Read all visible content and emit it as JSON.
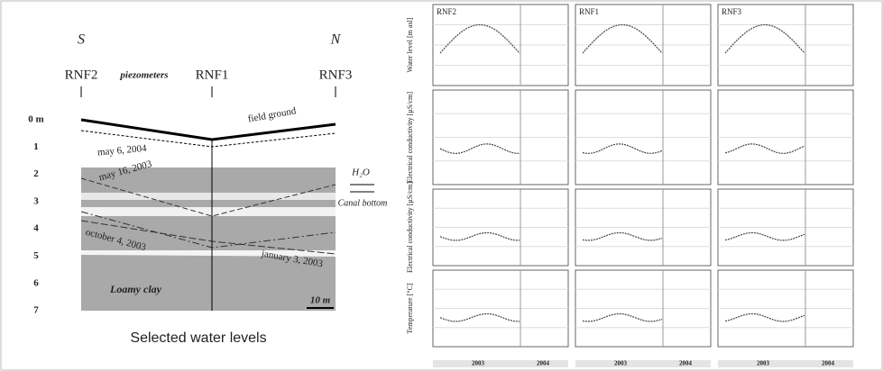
{
  "left": {
    "south": "S",
    "north": "N",
    "piezometers": [
      "RNF2",
      "RNF1",
      "RNF3"
    ],
    "piezometers_label": "piezometers",
    "depths": [
      "0 m",
      "1",
      "2",
      "3",
      "4",
      "5",
      "6",
      "7"
    ],
    "field_ground": "field ground",
    "levels": [
      "may 6, 2004",
      "may 16, 2003",
      "october 4, 2003",
      "january 3, 2003"
    ],
    "soil": "Loamy clay",
    "scale": "10 m",
    "caption": "Selected water levels",
    "water": "H₂O",
    "canal": "Canal bottom"
  },
  "right": {
    "columns": [
      "RNF2",
      "RNF1",
      "RNF3"
    ],
    "rows": [
      "Water level [m asl]",
      "Electrical conductivity [µS/cm]",
      "Electrical conductivity [µS/cm]",
      "Temperature [°C]"
    ],
    "years": [
      "2003",
      "2004"
    ]
  }
}
